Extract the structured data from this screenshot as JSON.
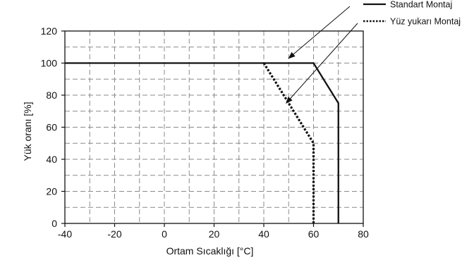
{
  "chart_data": {
    "type": "line",
    "title": "",
    "xlabel": "Ortam Sıcaklığı [°C]",
    "ylabel": "Yük oranı [%]",
    "xlim": [
      -40,
      80
    ],
    "ylim": [
      0,
      120
    ],
    "x_ticks": [
      -40,
      -20,
      0,
      20,
      40,
      60,
      80
    ],
    "y_ticks": [
      0,
      20,
      40,
      60,
      80,
      100,
      120
    ],
    "x_tick_labels": [
      "-40",
      "-20",
      "0",
      "20",
      "40",
      "60",
      "80"
    ],
    "y_tick_labels": [
      "0",
      "20",
      "40",
      "60",
      "80",
      "100",
      "120"
    ],
    "grid": "dashed, major and minor",
    "legend_position": "top-right, outside plot",
    "series": [
      {
        "name": "Standart Montaj",
        "style": "solid",
        "color": "#111111",
        "points": [
          [
            -40,
            100
          ],
          [
            60,
            100
          ],
          [
            70,
            75
          ],
          [
            70,
            0
          ]
        ]
      },
      {
        "name": "Yüz yukarı Montaj",
        "style": "dotted",
        "color": "#111111",
        "points": [
          [
            40,
            100
          ],
          [
            60,
            50
          ],
          [
            60,
            0
          ]
        ]
      }
    ]
  }
}
